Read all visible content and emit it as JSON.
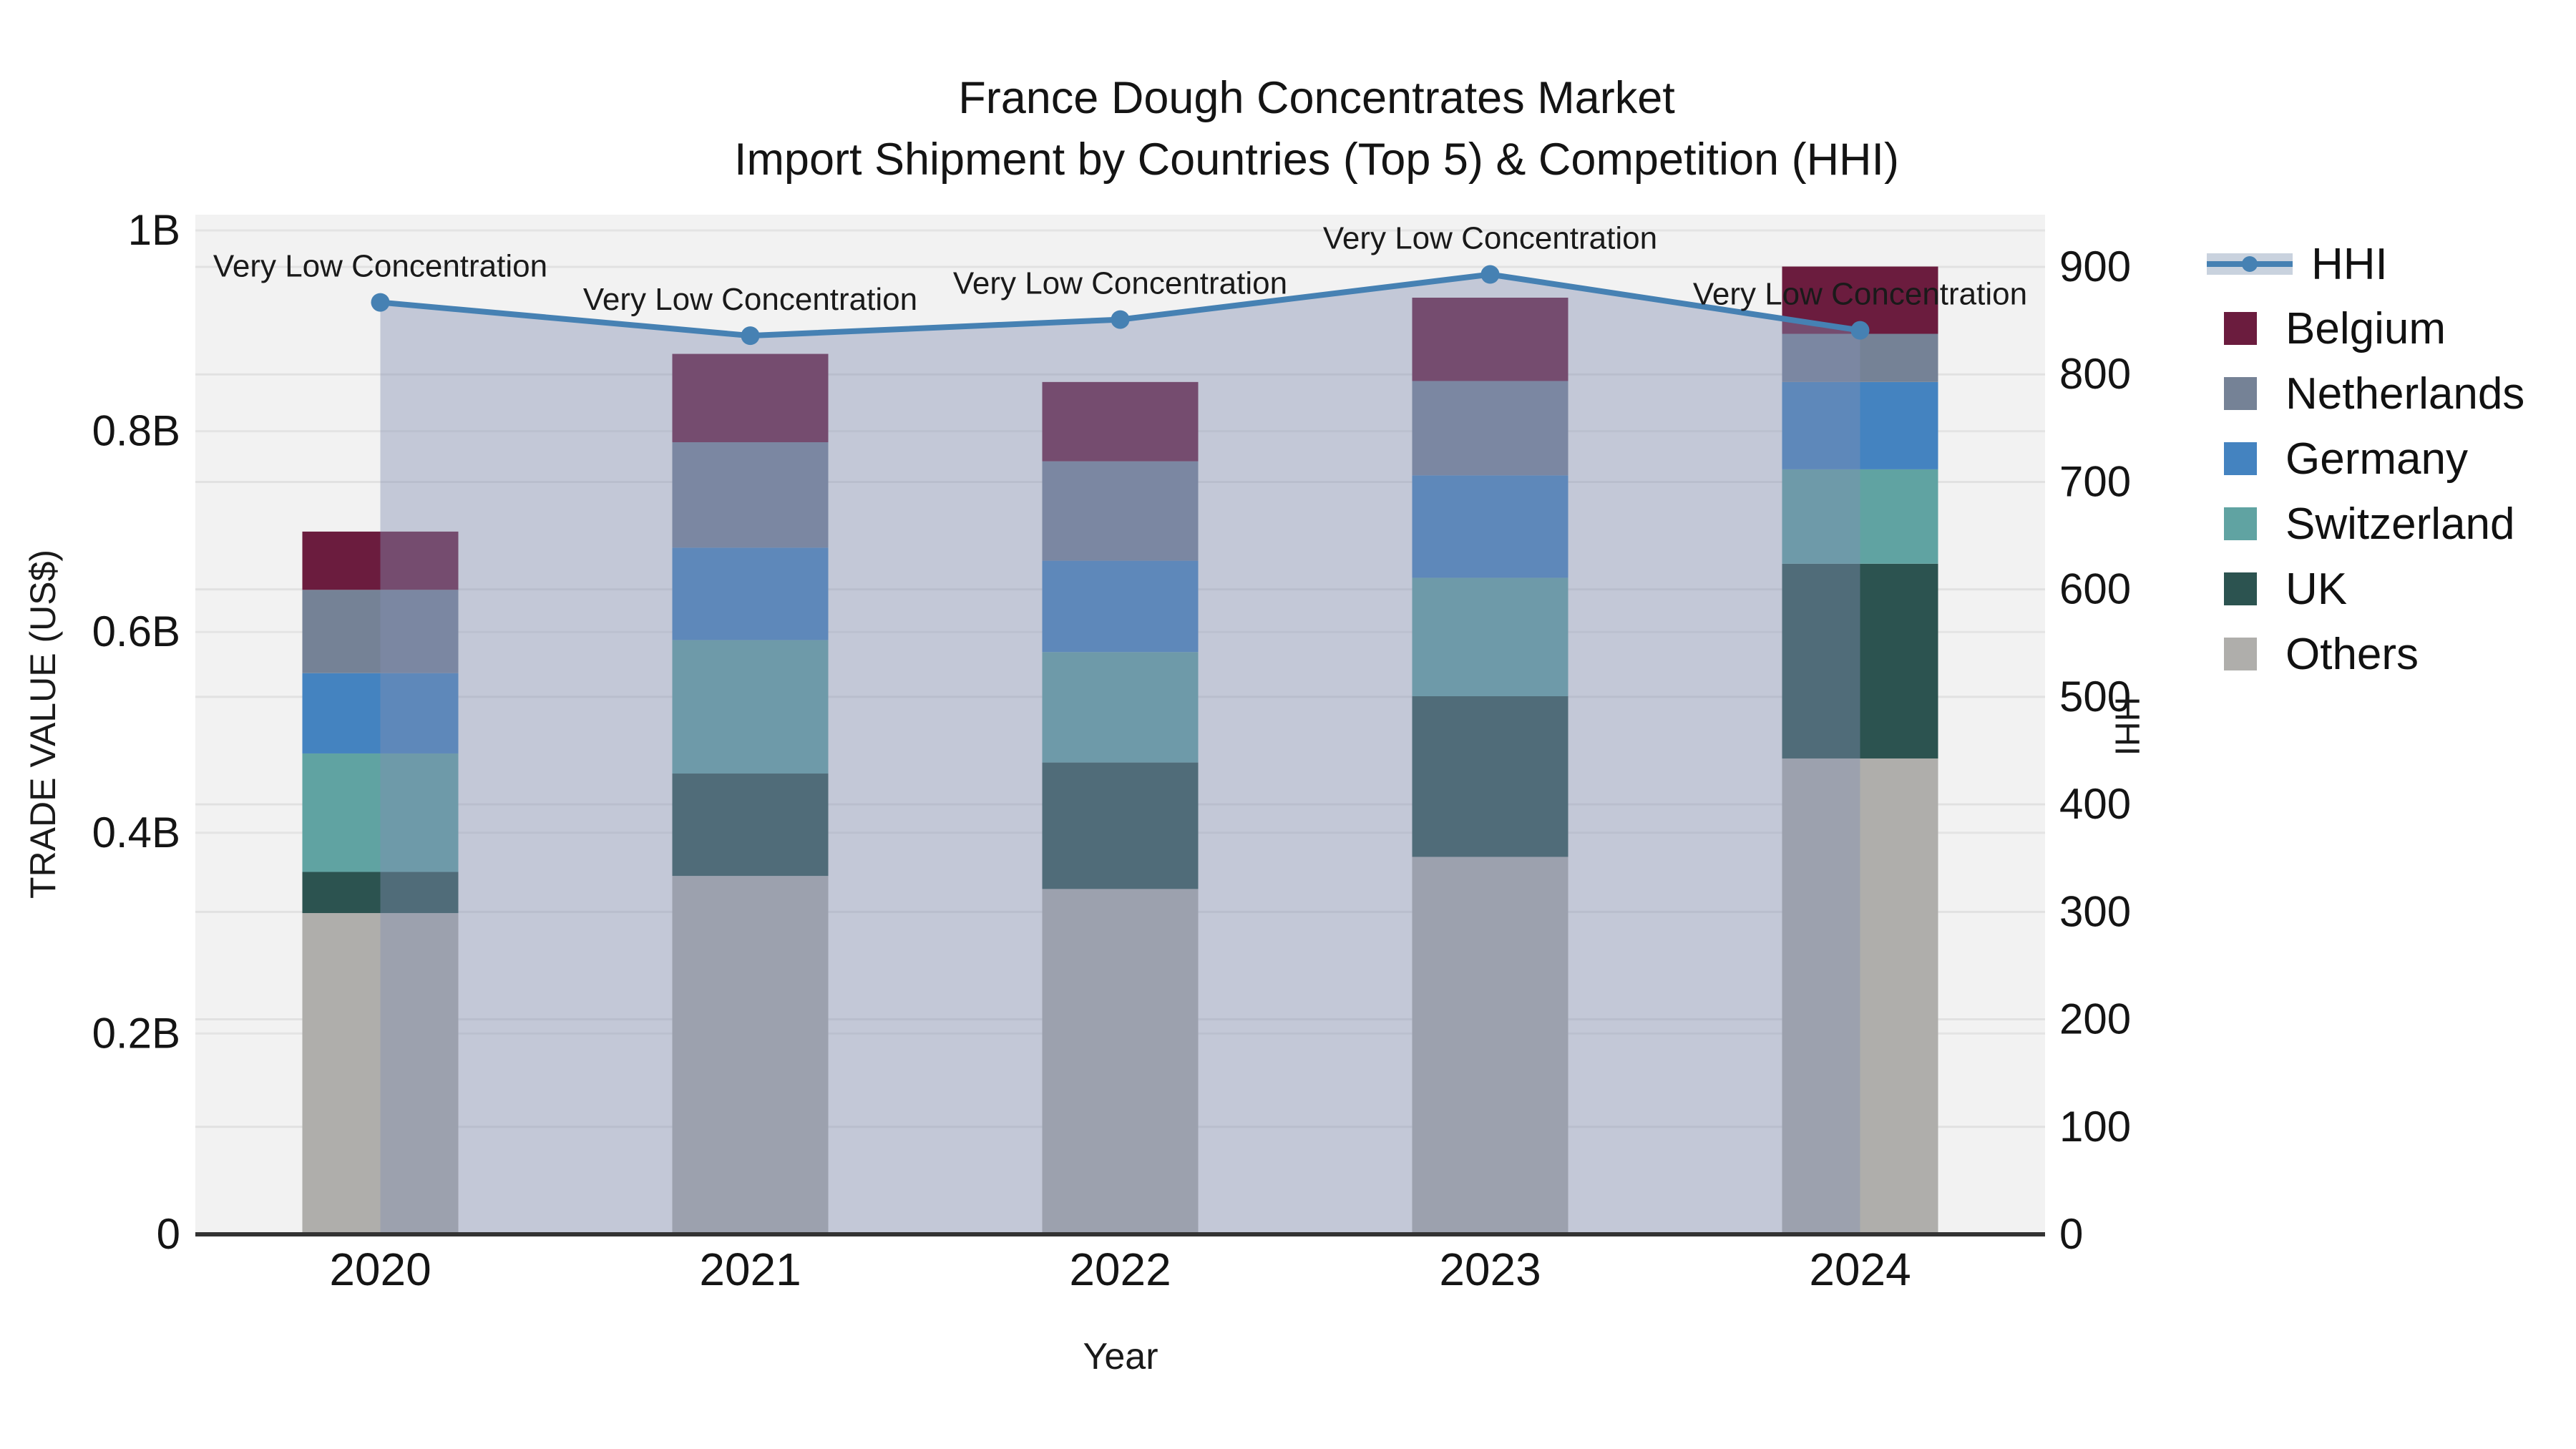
{
  "title": {
    "line1": "France Dough Concentrates Market",
    "line2": "Import Shipment by Countries (Top 5) & Competition (HHI)"
  },
  "axis_titles": {
    "left": "TRADE VALUE (US$)",
    "bottom": "Year",
    "right": "HHI"
  },
  "legend": {
    "items": [
      {
        "label": "HHI",
        "type": "line",
        "color": "#4681B3"
      },
      {
        "label": "Belgium",
        "type": "swatch",
        "color": "#6B1C3E"
      },
      {
        "label": "Netherlands",
        "type": "swatch",
        "color": "#758296"
      },
      {
        "label": "Germany",
        "type": "swatch",
        "color": "#4483C0"
      },
      {
        "label": "Switzerland",
        "type": "swatch",
        "color": "#60A3A2"
      },
      {
        "label": "UK",
        "type": "swatch",
        "color": "#2C5350"
      },
      {
        "label": "Others",
        "type": "swatch",
        "color": "#AFAEAB"
      }
    ]
  },
  "chart_data": {
    "type": "combo: stacked bar (left axis) + line with area fill (right axis)",
    "title": "France Dough Concentrates Market — Import Shipment by Countries (Top 5) & Competition (HHI)",
    "categories": [
      "2020",
      "2021",
      "2022",
      "2023",
      "2024"
    ],
    "unit": "billions of US$",
    "xlabel": "Year",
    "ylabel_left": "TRADE VALUE (US$)",
    "ylabel_right": "HHI",
    "stack_order_bottom_to_top": [
      "Others",
      "UK",
      "Switzerland",
      "Germany",
      "Netherlands",
      "Belgium"
    ],
    "series": [
      {
        "name": "Others",
        "color": "#AFAEAB",
        "values": [
          0.32,
          0.357,
          0.344,
          0.376,
          0.474
        ]
      },
      {
        "name": "UK",
        "color": "#2C5350",
        "values": [
          0.041,
          0.102,
          0.126,
          0.16,
          0.194
        ]
      },
      {
        "name": "Switzerland",
        "color": "#60A3A2",
        "values": [
          0.118,
          0.133,
          0.11,
          0.118,
          0.094
        ]
      },
      {
        "name": "Germany",
        "color": "#4483C0",
        "values": [
          0.08,
          0.092,
          0.091,
          0.102,
          0.087
        ]
      },
      {
        "name": "Netherlands",
        "color": "#758296",
        "values": [
          0.083,
          0.105,
          0.099,
          0.094,
          0.048
        ]
      },
      {
        "name": "Belgium",
        "color": "#6B1C3E",
        "values": [
          0.058,
          0.088,
          0.079,
          0.083,
          0.067
        ]
      }
    ],
    "bar_totals": [
      0.7,
      0.877,
      0.849,
      0.933,
      0.964
    ],
    "line_series": {
      "name": "HHI",
      "axis": "right",
      "color": "#4681B3",
      "area_fill": "rgba(130,142,178,0.42)",
      "values": [
        867,
        836,
        851,
        893,
        841
      ],
      "point_annotations": [
        "Very Low Concentration",
        "Very Low Concentration",
        "Very Low Concentration",
        "Very Low Concentration",
        "Very Low Concentration"
      ]
    },
    "y_left": {
      "ticks": [
        "0",
        "0.2B",
        "0.4B",
        "0.6B",
        "0.8B",
        "1B"
      ],
      "tick_values": [
        0,
        0.2,
        0.4,
        0.6,
        0.8,
        1.0
      ],
      "range": [
        0,
        1.016
      ]
    },
    "y_right": {
      "ticks": [
        "0",
        "100",
        "200",
        "300",
        "400",
        "500",
        "600",
        "700",
        "800",
        "900"
      ],
      "tick_values": [
        0,
        100,
        200,
        300,
        400,
        500,
        600,
        700,
        800,
        900
      ],
      "range": [
        0,
        949
      ]
    },
    "grid": true,
    "legend_position": "right"
  }
}
